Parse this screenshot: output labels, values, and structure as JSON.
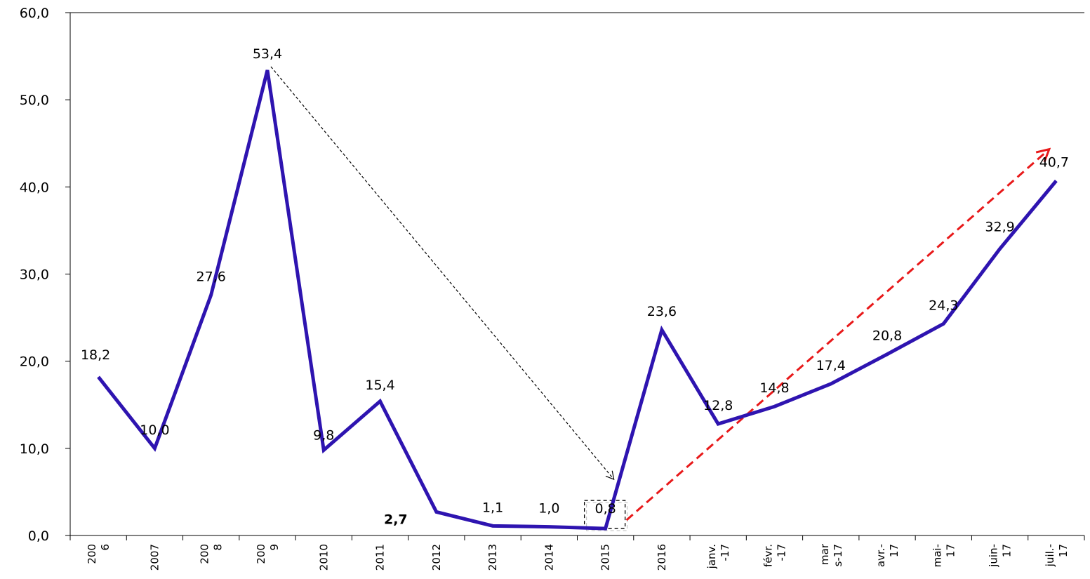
{
  "chart_data": {
    "type": "line",
    "categories": [
      "2006",
      "2007",
      "2008",
      "2009",
      "2010",
      "2011",
      "2012",
      "2013",
      "2014",
      "2015",
      "2016",
      "janv.-17",
      "févr.-17",
      "mars-17",
      "avr.-17",
      "mai-17",
      "juin-17",
      "juil.-17"
    ],
    "tick_labels": [
      [
        "200",
        "6"
      ],
      [
        "2007"
      ],
      [
        "200",
        "8"
      ],
      [
        "200",
        "9"
      ],
      [
        "2010"
      ],
      [
        "2011"
      ],
      [
        "2012"
      ],
      [
        "2013"
      ],
      [
        "2014"
      ],
      [
        "2015"
      ],
      [
        "2016"
      ],
      [
        "janv.",
        "-17"
      ],
      [
        "févr.",
        "-17"
      ],
      [
        "mar",
        "s-17"
      ],
      [
        "avr.-",
        "17"
      ],
      [
        "mai-",
        "17"
      ],
      [
        "juin-",
        "17"
      ],
      [
        "juil.-",
        "17"
      ]
    ],
    "series": [
      {
        "values": [
          18.2,
          10.0,
          27.6,
          53.4,
          9.8,
          15.4,
          2.7,
          1.1,
          1.0,
          0.8,
          23.6,
          12.8,
          14.8,
          17.4,
          20.8,
          24.3,
          32.9,
          40.7
        ],
        "color": "#2E14B0"
      }
    ],
    "data_labels": [
      "18,2",
      "10,0",
      "27,6",
      "53,4",
      "9,8",
      "15,4",
      "2,7",
      "1,1",
      "1,0",
      "0,8",
      "23,6",
      "12,8",
      "14,8",
      "17,4",
      "20,8",
      "24,3",
      "32,9",
      "40,7"
    ],
    "y_ticks": [
      "0,0",
      "10,0",
      "20,0",
      "30,0",
      "40,0",
      "50,0",
      "60,0"
    ],
    "ylim": [
      0,
      60
    ],
    "grid": false,
    "annotations": [
      {
        "kind": "dashed-arrow",
        "from_index": 3,
        "to_index": 9,
        "color": "#000000"
      },
      {
        "kind": "dashed-arrow",
        "from_index": 9,
        "to_index": 17,
        "color": "#E8191A"
      },
      {
        "kind": "dashed-box",
        "index": 9
      }
    ]
  }
}
